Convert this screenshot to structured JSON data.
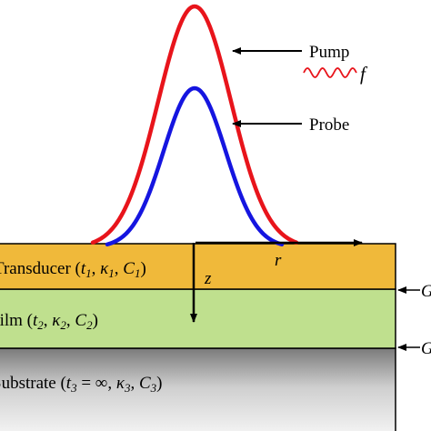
{
  "curves": {
    "pump_label": "Pump",
    "pump_freq_symbol": "f",
    "probe_label": "Probe"
  },
  "axes": {
    "r_label": "r",
    "z_label": "z"
  },
  "layers": {
    "transducer": {
      "name": "Transducer",
      "t": "t",
      "t_sub": "1",
      "kappa": "κ",
      "kappa_sub": "1",
      "c": "C",
      "c_sub": "1",
      "color": "#f0b93a"
    },
    "film": {
      "name": "Film",
      "t": "t",
      "t_sub": "2",
      "kappa": "κ",
      "kappa_sub": "2",
      "c": "C",
      "c_sub": "2",
      "color": "#bfe08e"
    },
    "substrate": {
      "name": "Substrate",
      "t": "t",
      "t_sub": "3",
      "equals_inf": " = ∞, ",
      "kappa": "κ",
      "kappa_sub": "3",
      "c": "C",
      "c_sub": "3"
    }
  },
  "interfaces": {
    "g1_label": "G",
    "g2_label": "G"
  },
  "colors": {
    "pump": "#e8141b",
    "probe": "#1515e0",
    "outline": "#000000"
  }
}
